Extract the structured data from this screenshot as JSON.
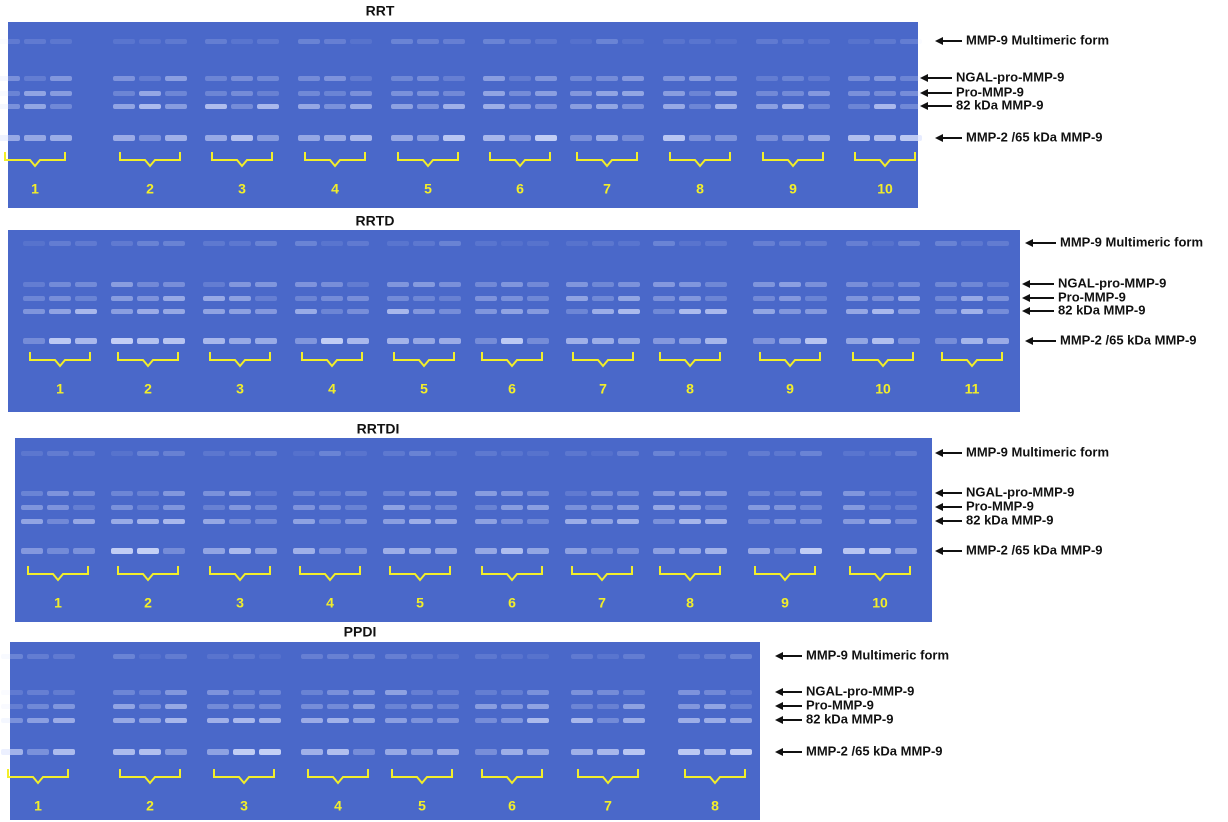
{
  "panels": [
    {
      "title": "RRT",
      "groups": [
        "1",
        "2",
        "3",
        "4",
        "5",
        "6",
        "7",
        "8",
        "9",
        "10"
      ],
      "labels": [
        "MMP-9 Multimeric form",
        "NGAL-pro-MMP-9",
        "Pro-MMP-9",
        "82 kDa MMP-9",
        "MMP-2 /65 kDa MMP-9"
      ]
    },
    {
      "title": "RRTD",
      "groups": [
        "1",
        "2",
        "3",
        "4",
        "5",
        "6",
        "7",
        "8",
        "9",
        "10",
        "11"
      ],
      "labels": [
        "MMP-9 Multimeric form",
        "NGAL-pro-MMP-9",
        "Pro-MMP-9",
        "82 kDa MMP-9",
        "MMP-2 /65 kDa MMP-9"
      ]
    },
    {
      "title": "RRTDI",
      "groups": [
        "1",
        "2",
        "3",
        "4",
        "5",
        "6",
        "7",
        "8",
        "9",
        "10"
      ],
      "labels": [
        "MMP-9 Multimeric form",
        "NGAL-pro-MMP-9",
        "Pro-MMP-9",
        "82 kDa MMP-9",
        "MMP-2 /65 kDa MMP-9"
      ]
    },
    {
      "title": "PPDI",
      "groups": [
        "1",
        "2",
        "3",
        "4",
        "5",
        "6",
        "7",
        "8"
      ],
      "labels": [
        "MMP-9 Multimeric form",
        "NGAL-pro-MMP-9",
        "Pro-MMP-9",
        "82 kDa MMP-9",
        "MMP-2 /65 kDa MMP-9"
      ]
    }
  ]
}
